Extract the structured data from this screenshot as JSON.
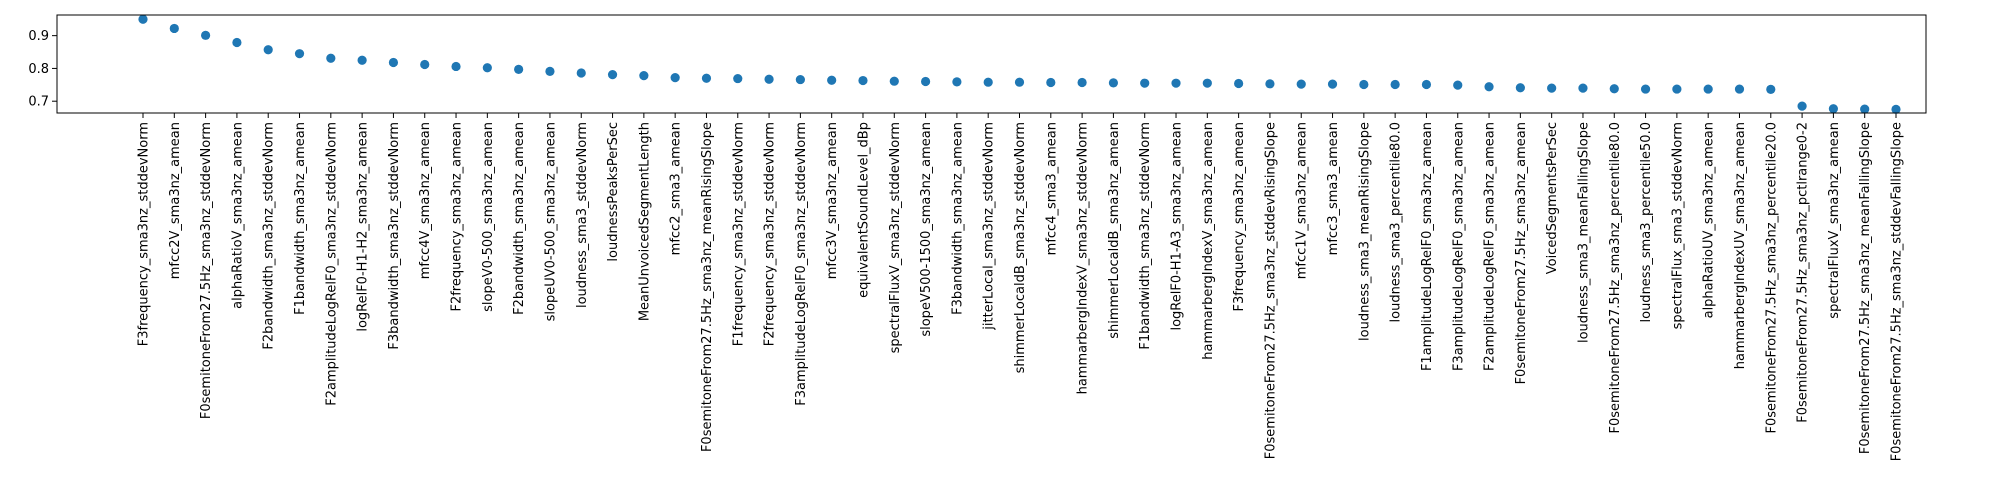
{
  "chart_data": {
    "type": "scatter",
    "title": "",
    "xlabel": "",
    "ylabel": "",
    "ylim": [
      0.664,
      0.963
    ],
    "yticks": [
      0.7,
      0.8,
      0.9
    ],
    "grid": false,
    "marker_color": "#1f77b4",
    "categories": [
      "F3frequency_sma3nz_stddevNorm",
      "mfcc2V_sma3nz_amean",
      "F0semitoneFrom27.5Hz_sma3nz_stddevNorm",
      "alphaRatioV_sma3nz_amean",
      "F2bandwidth_sma3nz_stddevNorm",
      "F1bandwidth_sma3nz_amean",
      "F2amplitudeLogRelF0_sma3nz_stddevNorm",
      "logRelF0-H1-H2_sma3nz_amean",
      "F3bandwidth_sma3nz_stddevNorm",
      "mfcc4V_sma3nz_amean",
      "F2frequency_sma3nz_amean",
      "slopeV0-500_sma3nz_amean",
      "F2bandwidth_sma3nz_amean",
      "slopeUV0-500_sma3nz_amean",
      "loudness_sma3_stddevNorm",
      "loudnessPeaksPerSec",
      "MeanUnvoicedSegmentLength",
      "mfcc2_sma3_amean",
      "F0semitoneFrom27.5Hz_sma3nz_meanRisingSlope",
      "F1frequency_sma3nz_stddevNorm",
      "F2frequency_sma3nz_stddevNorm",
      "F3amplitudeLogRelF0_sma3nz_stddevNorm",
      "mfcc3V_sma3nz_amean",
      "equivalentSoundLevel_dBp",
      "spectralFluxV_sma3nz_stddevNorm",
      "slopeV500-1500_sma3nz_amean",
      "F3bandwidth_sma3nz_amean",
      "jitterLocal_sma3nz_stddevNorm",
      "shimmerLocaldB_sma3nz_stddevNorm",
      "mfcc4_sma3_amean",
      "hammarbergIndexV_sma3nz_stddevNorm",
      "shimmerLocaldB_sma3nz_amean",
      "F1bandwidth_sma3nz_stddevNorm",
      "logRelF0-H1-A3_sma3nz_amean",
      "hammarbergIndexV_sma3nz_amean",
      "F3frequency_sma3nz_amean",
      "F0semitoneFrom27.5Hz_sma3nz_stddevRisingSlope",
      "mfcc1V_sma3nz_amean",
      "mfcc3_sma3_amean",
      "loudness_sma3_meanRisingSlope",
      "loudness_sma3_percentile80.0",
      "F1amplitudeLogRelF0_sma3nz_amean",
      "F3amplitudeLogRelF0_sma3nz_amean",
      "F2amplitudeLogRelF0_sma3nz_amean",
      "F0semitoneFrom27.5Hz_sma3nz_amean",
      "VoicedSegmentsPerSec",
      "loudness_sma3_meanFallingSlope",
      "F0semitoneFrom27.5Hz_sma3nz_percentile80.0",
      "loudness_sma3_percentile50.0",
      "spectralFlux_sma3_stddevNorm",
      "alphaRatioUV_sma3nz_amean",
      "hammarbergIndexUV_sma3nz_amean",
      "F0semitoneFrom27.5Hz_sma3nz_percentile20.0",
      "F0semitoneFrom27.5Hz_sma3nz_pctlrange0-2",
      "spectralFluxV_sma3nz_amean",
      "F0semitoneFrom27.5Hz_sma3nz_meanFallingSlope",
      "F0semitoneFrom27.5Hz_sma3nz_stddevFallingSlope"
    ],
    "values": [
      0.95,
      0.922,
      0.901,
      0.879,
      0.857,
      0.845,
      0.831,
      0.825,
      0.818,
      0.812,
      0.806,
      0.802,
      0.797,
      0.791,
      0.786,
      0.781,
      0.778,
      0.772,
      0.77,
      0.769,
      0.767,
      0.766,
      0.764,
      0.763,
      0.761,
      0.76,
      0.759,
      0.758,
      0.758,
      0.757,
      0.757,
      0.756,
      0.755,
      0.755,
      0.755,
      0.754,
      0.753,
      0.752,
      0.752,
      0.751,
      0.751,
      0.751,
      0.749,
      0.744,
      0.741,
      0.74,
      0.74,
      0.738,
      0.737,
      0.737,
      0.737,
      0.737,
      0.736,
      0.685,
      0.677,
      0.676,
      0.675
    ]
  }
}
